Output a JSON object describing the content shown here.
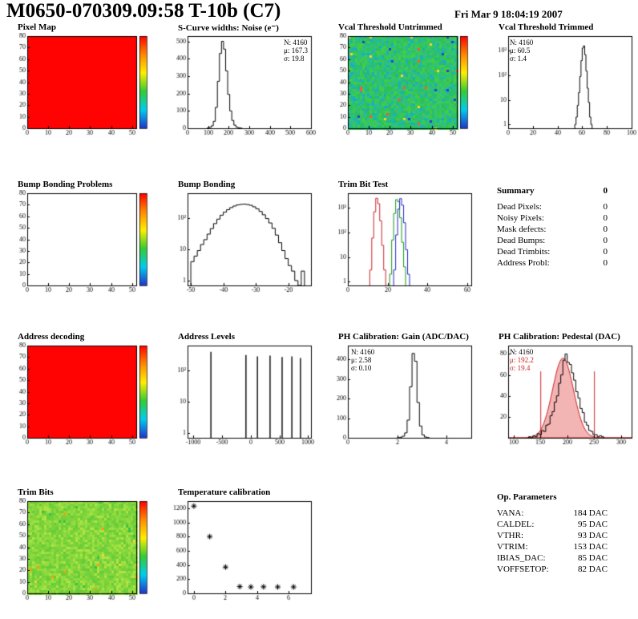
{
  "header": {
    "title": "M0650-070309.09:58 T-10b (C7)",
    "date": "Fri Mar  9 18:04:19 2007"
  },
  "summary": {
    "title": "Summary",
    "value": "0",
    "rows": [
      {
        "label": "Dead Pixels:",
        "value": "0"
      },
      {
        "label": "Noisy Pixels:",
        "value": "0"
      },
      {
        "label": "Mask defects:",
        "value": "0"
      },
      {
        "label": "Dead Bumps:",
        "value": "0"
      },
      {
        "label": "Dead Trimbits:",
        "value": "0"
      },
      {
        "label": "Address Probl:",
        "value": "0"
      }
    ]
  },
  "op_parameters": {
    "title": "Op. Parameters",
    "rows": [
      {
        "label": "VANA:",
        "value": "184 DAC"
      },
      {
        "label": "CALDEL:",
        "value": "95 DAC"
      },
      {
        "label": "VTHR:",
        "value": "93 DAC"
      },
      {
        "label": "VTRIM:",
        "value": "153 DAC"
      },
      {
        "label": "IBIAS_DAC:",
        "value": "85 DAC"
      },
      {
        "label": "VOFFSETOP:",
        "value": "82 DAC"
      }
    ]
  },
  "colors": {
    "map_red": "#ff0202",
    "fit_red": "#cc2222"
  },
  "chart_data": [
    {
      "title": "Pixel Map",
      "type": "heatmap",
      "fill": "solid",
      "color": "#ff0202",
      "xlim": [
        0,
        52
      ],
      "ylim": [
        0,
        80
      ],
      "xticks": [
        0,
        10,
        20,
        30,
        40,
        50
      ],
      "yticks": [
        0,
        10,
        20,
        30,
        40,
        50,
        60,
        70,
        80
      ],
      "colorbar": true
    },
    {
      "title": "S-Curve widths: Noise (e⁻)",
      "type": "hist",
      "xlim": [
        0,
        600
      ],
      "ylim": [
        0,
        530
      ],
      "xticks": [
        0,
        100,
        200,
        300,
        400,
        500,
        600
      ],
      "yticks": [
        0,
        100,
        200,
        300,
        400,
        500
      ],
      "bins": {
        "x_start": 95,
        "width": 10,
        "counts": [
          2,
          5,
          14,
          40,
          120,
          270,
          430,
          500,
          455,
          330,
          195,
          100,
          45,
          18,
          7,
          3,
          1
        ]
      },
      "stats": [
        "N: 4160",
        "μ: 167.3",
        "σ: 19.8"
      ]
    },
    {
      "title": "Vcal Threshold Untrimmed",
      "type": "heatmap",
      "fill": "noise",
      "palette": [
        "#2fc24d",
        "#38c75a",
        "#2bbd62",
        "#41cb49",
        "#33c370",
        "#27bd88",
        "#1fb9a2",
        "#35c856",
        "#2cc07b",
        "#44ce44",
        "#29bf93",
        "#1badbe"
      ],
      "specks": [
        "#ffd22e",
        "#2b3fd0",
        "#ff5533"
      ],
      "speck_p": 0.012,
      "seed": 7,
      "xlim": [
        0,
        52
      ],
      "ylim": [
        0,
        80
      ],
      "xticks": [
        0,
        10,
        20,
        30,
        40,
        50
      ],
      "yticks": [
        0,
        10,
        20,
        30,
        40,
        50,
        60,
        70,
        80
      ],
      "colorbar": true
    },
    {
      "title": "Vcal Threshold Trimmed",
      "type": "hist",
      "ylog": true,
      "xlim": [
        0,
        100
      ],
      "ylim": [
        0.7,
        4000
      ],
      "xticks": [
        0,
        20,
        40,
        60,
        80,
        100
      ],
      "yticks": [
        1,
        10,
        100,
        1000
      ],
      "bins": {
        "x_start": 54,
        "width": 1,
        "counts": [
          1,
          2,
          6,
          20,
          90,
          400,
          1300,
          1600,
          700,
          150,
          30,
          8,
          2,
          1
        ]
      },
      "stats": [
        "N: 4160",
        "μ: 60.5",
        "σ: 1.4"
      ]
    },
    {
      "title": "Bump Bonding Problems",
      "type": "heatmap",
      "fill": "empty",
      "xlim": [
        0,
        52
      ],
      "ylim": [
        0,
        80
      ],
      "xticks": [
        0,
        10,
        20,
        30,
        40,
        50
      ],
      "yticks": [
        0,
        10,
        20,
        30,
        40,
        50,
        60,
        70,
        80
      ],
      "colorbar": true
    },
    {
      "title": "Bump Bonding",
      "type": "hist",
      "ylog": true,
      "xlim": [
        -51,
        -13
      ],
      "ylim": [
        0.7,
        600
      ],
      "xticks": [
        -50,
        -40,
        -30,
        -20
      ],
      "yticks": [
        1,
        10,
        100
      ],
      "bins": {
        "x_start": -50,
        "width": 1,
        "counts": [
          4,
          6,
          9,
          14,
          20,
          30,
          45,
          65,
          90,
          120,
          150,
          180,
          210,
          235,
          255,
          265,
          270,
          262,
          248,
          222,
          192,
          158,
          124,
          94,
          68,
          46,
          28,
          16,
          9,
          5,
          3,
          2,
          1,
          0,
          2
        ]
      }
    },
    {
      "title": "Trim Bit Test",
      "type": "hist_multi",
      "ylog": true,
      "xlim": [
        0,
        62
      ],
      "ylim": [
        0.7,
        4000
      ],
      "xticks": [
        0,
        20,
        40,
        60
      ],
      "yticks": [
        1,
        10,
        100,
        1000
      ],
      "series": [
        {
          "color": "#cc2222",
          "bins": {
            "x_start": 11,
            "width": 1,
            "counts": [
              3,
              60,
              700,
              2500,
              1500,
              300,
              30,
              3
            ]
          }
        },
        {
          "color": "#119911",
          "bins": {
            "x_start": 21,
            "width": 1,
            "counts": [
              2,
              50,
              600,
              2200,
              1800,
              400,
              40,
              4
            ]
          }
        },
        {
          "color": "#2222cc",
          "bins": {
            "x_start": 23,
            "width": 1,
            "counts": [
              3,
              80,
              900,
              2400,
              1300,
              250,
              20,
              2
            ]
          }
        }
      ]
    },
    {
      "title": "Address decoding",
      "type": "heatmap",
      "fill": "solid",
      "color": "#ff0202",
      "xlim": [
        0,
        52
      ],
      "ylim": [
        0,
        80
      ],
      "xticks": [
        0,
        10,
        20,
        30,
        40,
        50
      ],
      "yticks": [
        0,
        10,
        20,
        30,
        40,
        50,
        60,
        70,
        80
      ],
      "colorbar": true
    },
    {
      "title": "Address Levels",
      "type": "spikes",
      "ylog": true,
      "xlim": [
        -1100,
        1050
      ],
      "ylim": [
        0.7,
        600
      ],
      "xticks": [
        -1000,
        -500,
        0,
        500,
        1000
      ],
      "yticks": [
        1,
        10,
        100
      ],
      "spikes": [
        [
          -700,
          380
        ],
        [
          -90,
          300
        ],
        [
          110,
          270
        ],
        [
          330,
          290
        ],
        [
          540,
          260
        ],
        [
          710,
          270
        ],
        [
          860,
          240
        ]
      ]
    },
    {
      "title": "PH Calibration: Gain (ADC/DAC)",
      "type": "hist",
      "xlim": [
        0,
        5
      ],
      "ylim": [
        0,
        470
      ],
      "xticks": [
        0,
        2,
        4
      ],
      "yticks": [
        0,
        100,
        200,
        300,
        400
      ],
      "bins": {
        "x_start": 2.0,
        "width": 0.1,
        "counts": [
          1,
          3,
          8,
          25,
          90,
          260,
          430,
          390,
          180,
          60,
          15,
          4,
          1
        ]
      },
      "stats": [
        "N: 4160",
        "μ: 2.58",
        "σ: 0.10"
      ]
    },
    {
      "title": "PH Calibration: Pedestal (DAC)",
      "type": "hist_fit",
      "xlim": [
        90,
        320
      ],
      "ylim": [
        0,
        88
      ],
      "xticks": [
        100,
        150,
        200,
        250,
        300
      ],
      "yticks": [
        20,
        40,
        60,
        80
      ],
      "bins": {
        "x_start": 128,
        "width": 4,
        "counts": [
          1,
          0,
          2,
          1,
          4,
          3,
          7,
          6,
          12,
          13,
          21,
          25,
          34,
          40,
          52,
          60,
          74,
          80,
          72,
          70,
          62,
          55,
          44,
          38,
          28,
          24,
          15,
          12,
          7,
          6,
          3,
          3,
          1,
          2,
          1
        ]
      },
      "fit": {
        "mu": 192.2,
        "sigma": 19.4,
        "amp": 76
      },
      "vlines": [
        150,
        250
      ],
      "stats": [
        "N: 4160",
        "μ: 192.2",
        "σ: 19.4"
      ]
    },
    {
      "title": "Trim Bits",
      "type": "heatmap",
      "fill": "noise",
      "palette": [
        "#7fd43c",
        "#8eda3e",
        "#6ecf3a",
        "#9fdf40",
        "#7ad23b",
        "#b0e342",
        "#65cc39",
        "#95dc3f",
        "#86d73d",
        "#72d03a"
      ],
      "specks": [
        "#ff9a00",
        "#35c24b",
        "#ffd22e"
      ],
      "speck_p": 0.02,
      "seed": 13,
      "xlim": [
        0,
        52
      ],
      "ylim": [
        0,
        80
      ],
      "xticks": [
        0,
        10,
        20,
        30,
        40,
        50
      ],
      "yticks": [
        0,
        10,
        20,
        30,
        40,
        50,
        60,
        70,
        80
      ],
      "colorbar": true
    },
    {
      "title": "Temperature calibration",
      "type": "scatter",
      "marker": "star",
      "xlim": [
        -0.4,
        7.4
      ],
      "ylim": [
        0,
        1300
      ],
      "xticks": [
        0,
        2,
        4,
        6
      ],
      "yticks": [
        0,
        200,
        400,
        600,
        800,
        1000,
        1200
      ],
      "points": [
        [
          0,
          1230
        ],
        [
          1,
          800
        ],
        [
          2,
          370
        ],
        [
          2.9,
          95
        ],
        [
          3.6,
          90
        ],
        [
          4.4,
          92
        ],
        [
          5.3,
          90
        ],
        [
          6.3,
          90
        ]
      ]
    }
  ]
}
